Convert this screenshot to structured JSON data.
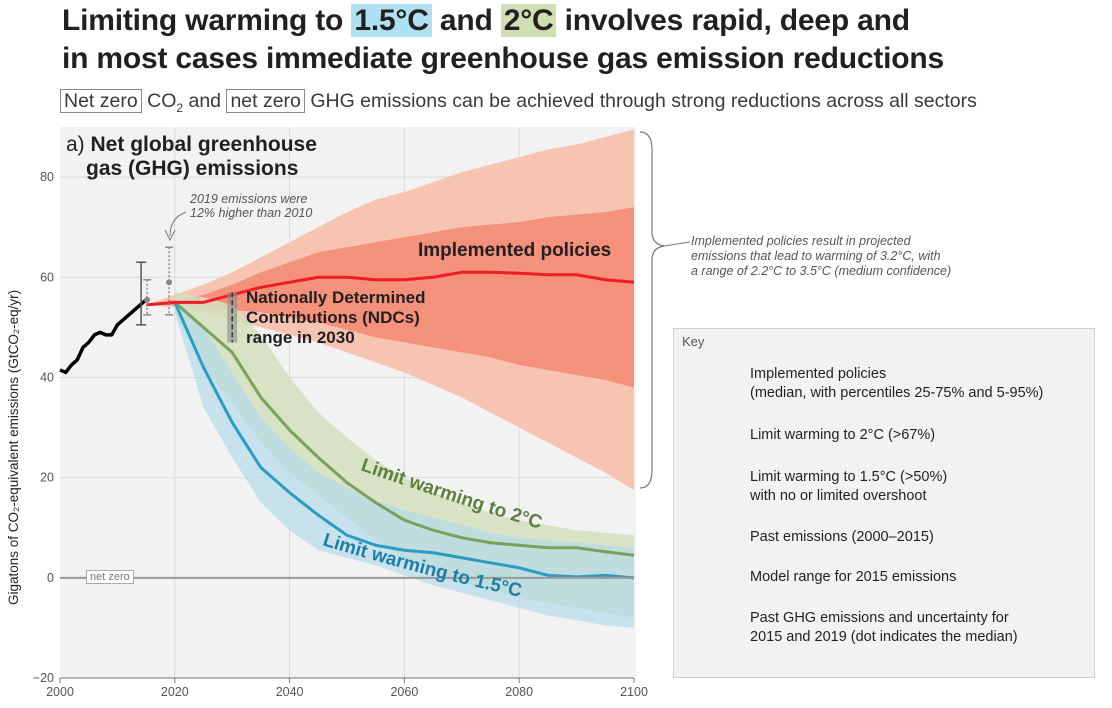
{
  "title": {
    "part1": "Limiting warming to ",
    "hl1": "1.5°C",
    "part2": " and ",
    "hl2": "2°C",
    "part3": " involves rapid, deep and",
    "line2": "in most cases immediate greenhouse gas emission reductions"
  },
  "subtitle": {
    "box1": "Net zero",
    "co2": "CO",
    "co2_sub": "2",
    "mid": " and ",
    "box2": "net zero",
    "rest": " GHG emissions can be achieved through strong reductions across all sectors"
  },
  "panel": {
    "label_prefix": "a) ",
    "label_line1": "Net global greenhouse",
    "label_line2": "gas (GHG) emissions"
  },
  "annotations": {
    "emissions_2019_line1": "2019 emissions were",
    "emissions_2019_line2": "12% higher than 2010",
    "implemented_line1": "Implemented policies result in projected",
    "implemented_line2": "emissions that lead to warming of 3.2°C, with",
    "implemented_line3": "a range of 2.2°C to 3.5°C (medium confidence)",
    "implemented_label": "Implemented policies",
    "ndc_line1": "Nationally Determined",
    "ndc_line2": "Contributions (NDCs)",
    "ndc_line3": "range in 2030",
    "limit2_label": "Limit warming to 2°C",
    "limit15_label": "Limit warming to 1.5°C",
    "net_zero": "net zero"
  },
  "key": {
    "title": "Key",
    "items": [
      {
        "line1": "Implemented policies",
        "line2": "(median, with percentiles 25-75% and 5-95%)"
      },
      {
        "line1": "Limit warming to 2°C (>67%)"
      },
      {
        "line1": "Limit warming to 1.5°C (>50%)",
        "line2": "with no or limited overshoot"
      },
      {
        "line1": "Past emissions (2000–2015)"
      },
      {
        "line1": "Model range for 2015 emissions"
      },
      {
        "line1": "Past GHG emissions and uncertainty for",
        "line2": "2015 and 2019 (dot indicates the median)"
      }
    ]
  },
  "colors": {
    "implemented": "#ee1c25",
    "implemented_band_outer": "#f8c4b2",
    "implemented_band_inner": "#f4917a",
    "limit2": "#7aa05a",
    "limit2_band": "#d4dfbd",
    "limit15": "#2b9cc1",
    "limit15_band": "#b5dcea",
    "past": "#000000"
  },
  "chart_data": {
    "type": "line",
    "ylabel": "Gigatons of CO₂-equivalent emissions (GtCO₂-eq/yr)",
    "xlim": [
      2000,
      2100
    ],
    "ylim": [
      -20,
      90
    ],
    "x_ticks": [
      "2000",
      "2020",
      "2040",
      "2060",
      "2080",
      "2100"
    ],
    "y_ticks": [
      "−20",
      "0",
      "20",
      "40",
      "60",
      "80"
    ],
    "series": [
      {
        "name": "Past emissions (2000–2015)",
        "x": [
          2000,
          2001,
          2002,
          2003,
          2004,
          2005,
          2006,
          2007,
          2008,
          2009,
          2010,
          2011,
          2012,
          2013,
          2014,
          2015
        ],
        "values": [
          41.5,
          41,
          42.5,
          43.5,
          46,
          47,
          48.5,
          49,
          48.5,
          48.5,
          50.5,
          51.5,
          52.5,
          53.5,
          54.5,
          55.5
        ]
      },
      {
        "name": "Implemented policies",
        "x": [
          2015,
          2020,
          2025,
          2030,
          2035,
          2040,
          2045,
          2050,
          2055,
          2060,
          2065,
          2070,
          2075,
          2080,
          2085,
          2090,
          2095,
          2100
        ],
        "values": [
          54.5,
          55,
          55,
          56.5,
          58,
          59,
          60,
          60,
          59.5,
          59.5,
          60,
          61,
          61,
          60.8,
          60.5,
          60.5,
          59.5,
          59
        ],
        "p25": [
          54.5,
          54.5,
          54,
          53.5,
          53,
          52,
          51,
          49.5,
          48,
          47,
          46,
          45,
          44,
          42.5,
          41.5,
          40.5,
          39.5,
          38
        ],
        "p75": [
          54.5,
          55.5,
          56.5,
          58.5,
          61,
          63,
          65,
          66,
          67,
          68,
          69,
          70,
          70.5,
          71,
          72,
          72.5,
          73,
          74
        ],
        "p5": [
          54.5,
          54,
          53,
          51.5,
          50,
          48.5,
          47,
          45,
          43,
          41,
          38.5,
          36,
          33,
          30,
          27,
          24,
          21,
          17.5
        ],
        "p95": [
          54.5,
          56.5,
          58.5,
          61,
          64,
          67,
          70,
          73,
          75.5,
          77,
          79,
          81,
          82.5,
          84,
          85.5,
          86.5,
          88,
          89.5
        ]
      },
      {
        "name": "Limit warming to 2°C (>67%)",
        "x": [
          2020,
          2025,
          2030,
          2035,
          2040,
          2045,
          2050,
          2055,
          2060,
          2065,
          2070,
          2075,
          2080,
          2085,
          2090,
          2095,
          2100
        ],
        "values": [
          55,
          50,
          45,
          36,
          29.5,
          24,
          19,
          15,
          11.5,
          9.5,
          8,
          7,
          6.5,
          6,
          6,
          5.2,
          4.5
        ],
        "low": [
          53,
          42,
          35,
          27,
          21,
          16.5,
          12,
          7.5,
          4,
          1.5,
          -1,
          -2.5,
          -4,
          -5,
          -6,
          -7,
          -8
        ],
        "high": [
          57,
          56,
          54.5,
          48.5,
          40,
          33,
          28,
          23.5,
          20,
          17,
          15,
          13,
          11.5,
          10.5,
          9.5,
          9,
          8.5
        ]
      },
      {
        "name": "Limit warming to 1.5°C (>50%)",
        "x": [
          2020,
          2025,
          2030,
          2035,
          2040,
          2045,
          2050,
          2055,
          2060,
          2065,
          2070,
          2075,
          2080,
          2085,
          2090,
          2095,
          2100
        ],
        "values": [
          55,
          42,
          31,
          22,
          17,
          12.5,
          8.5,
          6.5,
          5.5,
          5,
          4,
          3,
          2,
          0.5,
          0.2,
          0.5,
          0
        ],
        "low": [
          53,
          34,
          24,
          15,
          9.5,
          5.5,
          4,
          2.5,
          0.5,
          -1.5,
          -3,
          -4.5,
          -6,
          -7.5,
          -8.5,
          -9.5,
          -10
        ],
        "high": [
          56,
          50,
          41,
          32,
          26,
          21,
          18,
          15.5,
          13.5,
          12,
          10.5,
          9,
          8,
          7.5,
          7,
          6.5,
          6
        ]
      }
    ],
    "model_range_2015": {
      "x": 2015,
      "low": 50.5,
      "high": 63,
      "median": 56.5
    },
    "past_uncertainty": [
      {
        "x": 2015,
        "low": 52.5,
        "high": 59.5,
        "median": 55.5
      },
      {
        "x": 2019,
        "low": 52.5,
        "high": 66,
        "median": 59
      }
    ],
    "ndc_range_2030": {
      "x": 2030,
      "low": 47,
      "high": 57
    },
    "grid": true,
    "legend": "right"
  }
}
